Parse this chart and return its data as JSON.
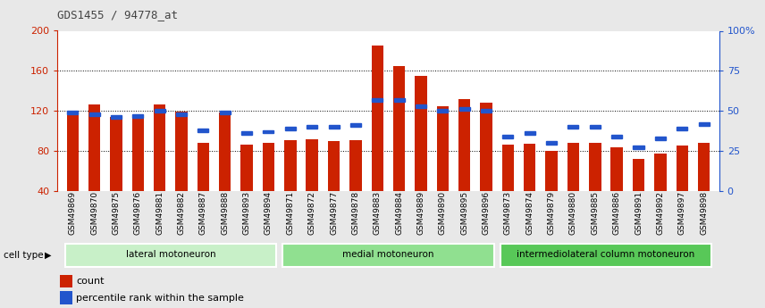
{
  "title": "GDS1455 / 94778_at",
  "samples": [
    "GSM49869",
    "GSM49870",
    "GSM49875",
    "GSM49876",
    "GSM49881",
    "GSM49882",
    "GSM49887",
    "GSM49888",
    "GSM49893",
    "GSM49894",
    "GSM49871",
    "GSM49872",
    "GSM49877",
    "GSM49878",
    "GSM49883",
    "GSM49884",
    "GSM49889",
    "GSM49890",
    "GSM49895",
    "GSM49896",
    "GSM49873",
    "GSM49874",
    "GSM49879",
    "GSM49880",
    "GSM49885",
    "GSM49886",
    "GSM49891",
    "GSM49892",
    "GSM49897",
    "GSM49898"
  ],
  "count_values": [
    116,
    126,
    114,
    116,
    126,
    119,
    88,
    118,
    86,
    88,
    91,
    92,
    90,
    91,
    185,
    165,
    155,
    125,
    132,
    128,
    86,
    87,
    80,
    88,
    88,
    84,
    72,
    77,
    85,
    88
  ],
  "percentile_values": [
    49,
    48,
    46,
    47,
    50,
    48,
    38,
    49,
    36,
    37,
    39,
    40,
    40,
    41,
    57,
    57,
    53,
    50,
    51,
    50,
    34,
    36,
    30,
    40,
    40,
    34,
    27,
    33,
    39,
    42
  ],
  "cell_type_groups": [
    {
      "label": "lateral motoneuron",
      "start": 0,
      "end": 10,
      "color": "#c8f0c8"
    },
    {
      "label": "medial motoneuron",
      "start": 10,
      "end": 20,
      "color": "#90e090"
    },
    {
      "label": "intermediolateral column motoneuron",
      "start": 20,
      "end": 30,
      "color": "#58c858"
    }
  ],
  "ylim_left": [
    40,
    200
  ],
  "ylim_right": [
    0,
    100
  ],
  "yticks_left": [
    40,
    80,
    120,
    160,
    200
  ],
  "yticks_right": [
    0,
    25,
    50,
    75,
    100
  ],
  "ytick_labels_right": [
    "0",
    "25",
    "50",
    "75",
    "100%"
  ],
  "bar_color": "#cc2200",
  "percentile_color": "#2255cc",
  "background_color": "#e8e8e8",
  "plot_bg_color": "#ffffff",
  "cell_type_label": "cell type",
  "legend_count_label": "count",
  "legend_percentile_label": "percentile rank within the sample",
  "title_color": "#333333",
  "left_axis_color": "#cc2200",
  "right_axis_color": "#2255cc"
}
